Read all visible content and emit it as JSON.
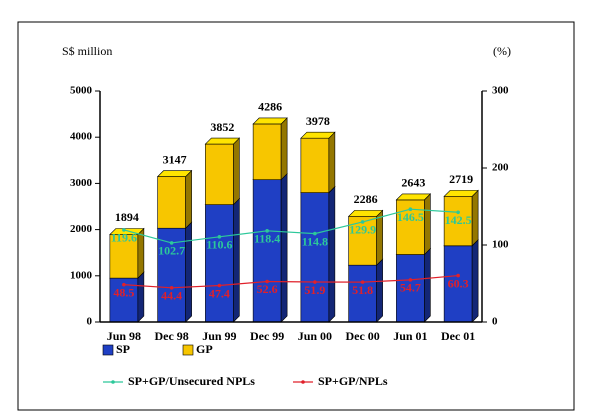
{
  "chart_data": {
    "type": "bar",
    "y_label": "S$ million",
    "y2_label": "(%)",
    "categories": [
      "Jun 98",
      "Dec 98",
      "Jun 99",
      "Dec 99",
      "Jun 00",
      "Dec 00",
      "Jun 01",
      "Dec 01"
    ],
    "totals": [
      1894,
      3147,
      3852,
      4286,
      3978,
      2286,
      2643,
      2719
    ],
    "series": [
      {
        "name": "SP",
        "type": "bar",
        "axis": "y",
        "color": "#1f3fc4",
        "values": [
          950,
          2030,
          2540,
          3080,
          2800,
          1230,
          1460,
          1650
        ]
      },
      {
        "name": "GP",
        "type": "bar",
        "axis": "y",
        "color": "#f7c600",
        "values": [
          944,
          1117,
          1312,
          1206,
          1178,
          1056,
          1183,
          1069
        ]
      },
      {
        "name": "SP+GP/Unsecured NPLs",
        "type": "line",
        "axis": "y2",
        "color": "#2cc89a",
        "values": [
          119.6,
          102.7,
          110.6,
          118.4,
          114.8,
          129.9,
          146.5,
          142.5
        ]
      },
      {
        "name": "SP+GP/NPLs",
        "type": "line",
        "axis": "y2",
        "color": "#e0202a",
        "values": [
          48.5,
          44.4,
          47.4,
          52.6,
          51.9,
          51.8,
          54.7,
          60.3
        ]
      }
    ],
    "ylim": [
      0,
      5000
    ],
    "yticks": [
      0,
      1000,
      2000,
      3000,
      4000,
      5000
    ],
    "y2lim": [
      0,
      300
    ],
    "y2ticks": [
      0,
      100,
      200,
      300
    ]
  }
}
